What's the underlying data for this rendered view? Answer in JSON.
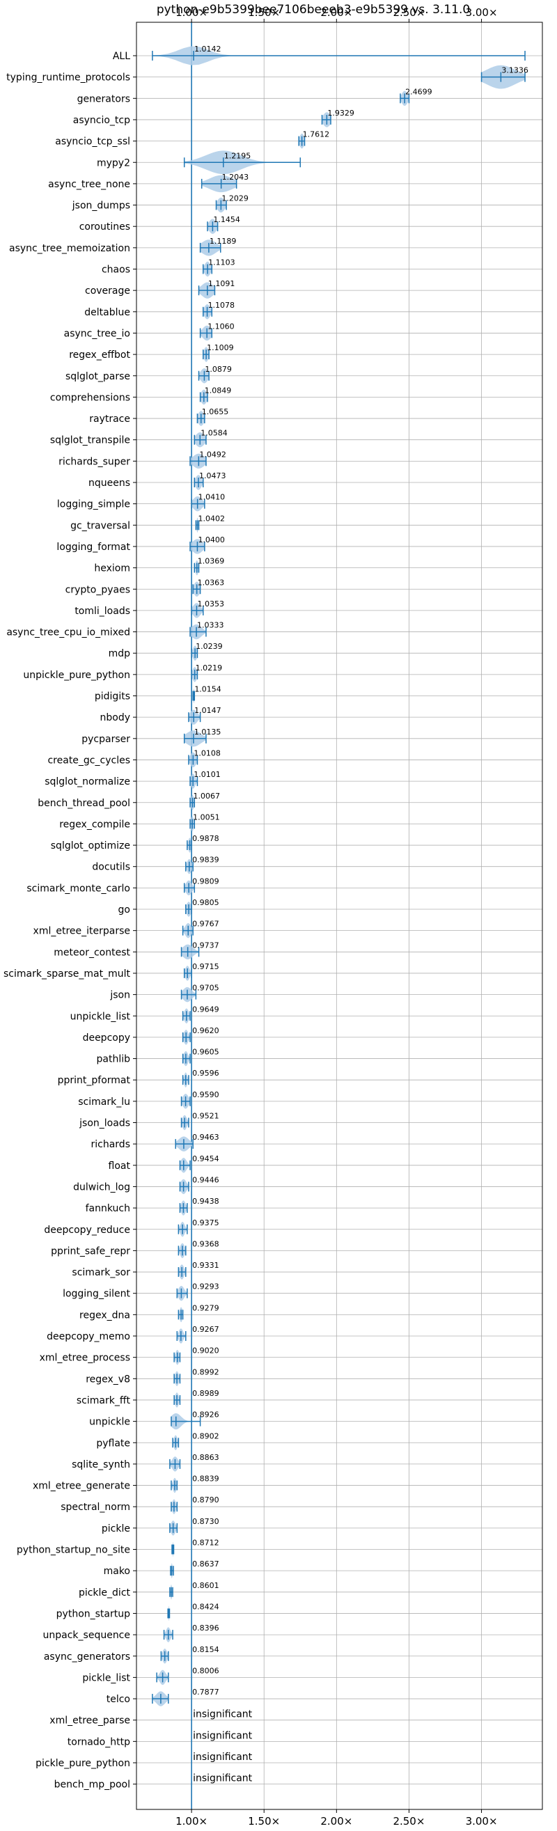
{
  "chart_data": {
    "type": "violin",
    "title": "python-e9b5399bee7106beeeb3-e9b5399 vs. 3.11.0",
    "xlabel": "",
    "ylabel": "",
    "xlim": [
      0.62,
      3.42
    ],
    "x_ticks": [
      1.0,
      1.5,
      2.0,
      2.5,
      3.0
    ],
    "x_tick_labels": [
      "1.00×",
      "1.50×",
      "2.00×",
      "2.50×",
      "3.00×"
    ],
    "grid": true,
    "reference_line": 1.0,
    "colors": {
      "violin": "#aecde8",
      "stroke": "#1f77b4",
      "grid": "#b0b0b0",
      "text": "#000000"
    },
    "categories": [
      {
        "name": "ALL",
        "median": 1.0142,
        "label": "1.0142",
        "min": 0.73,
        "max": 3.3,
        "spread": 0.1,
        "width": 0.45
      },
      {
        "name": "typing_runtime_protocols",
        "median": 3.1336,
        "label": "3.1336",
        "min": 3.0,
        "max": 3.3,
        "spread": 0.1,
        "width": 0.55
      },
      {
        "name": "generators",
        "median": 2.4699,
        "label": "2.4699",
        "min": 2.44,
        "max": 2.5,
        "spread": 0.02,
        "width": 0.35
      },
      {
        "name": "asyncio_tcp",
        "median": 1.9329,
        "label": "1.9329",
        "min": 1.9,
        "max": 1.96,
        "spread": 0.025,
        "width": 0.35
      },
      {
        "name": "asyncio_tcp_ssl",
        "median": 1.7612,
        "label": "1.7612",
        "min": 1.74,
        "max": 1.78,
        "spread": 0.015,
        "width": 0.35
      },
      {
        "name": "mypy2",
        "median": 1.2195,
        "label": "1.2195",
        "min": 0.95,
        "max": 1.75,
        "spread": 0.12,
        "width": 0.55
      },
      {
        "name": "async_tree_none",
        "median": 1.2043,
        "label": "1.2043",
        "min": 1.07,
        "max": 1.31,
        "spread": 0.08,
        "width": 0.4
      },
      {
        "name": "json_dumps",
        "median": 1.2029,
        "label": "1.2029",
        "min": 1.17,
        "max": 1.24,
        "spread": 0.025,
        "width": 0.35
      },
      {
        "name": "coroutines",
        "median": 1.1454,
        "label": "1.1454",
        "min": 1.11,
        "max": 1.18,
        "spread": 0.025,
        "width": 0.35
      },
      {
        "name": "async_tree_memoization",
        "median": 1.1189,
        "label": "1.1189",
        "min": 1.06,
        "max": 1.2,
        "spread": 0.05,
        "width": 0.38
      },
      {
        "name": "chaos",
        "median": 1.1103,
        "label": "1.1103",
        "min": 1.08,
        "max": 1.14,
        "spread": 0.02,
        "width": 0.35
      },
      {
        "name": "coverage",
        "median": 1.1091,
        "label": "1.1091",
        "min": 1.05,
        "max": 1.16,
        "spread": 0.04,
        "width": 0.38
      },
      {
        "name": "deltablue",
        "median": 1.1078,
        "label": "1.1078",
        "min": 1.08,
        "max": 1.14,
        "spread": 0.02,
        "width": 0.35
      },
      {
        "name": "async_tree_io",
        "median": 1.106,
        "label": "1.1060",
        "min": 1.06,
        "max": 1.14,
        "spread": 0.03,
        "width": 0.35
      },
      {
        "name": "regex_effbot",
        "median": 1.1009,
        "label": "1.1009",
        "min": 1.08,
        "max": 1.12,
        "spread": 0.015,
        "width": 0.35
      },
      {
        "name": "sqlglot_parse",
        "median": 1.0879,
        "label": "1.0879",
        "min": 1.05,
        "max": 1.12,
        "spread": 0.025,
        "width": 0.35
      },
      {
        "name": "comprehensions",
        "median": 1.0849,
        "label": "1.0849",
        "min": 1.06,
        "max": 1.11,
        "spread": 0.02,
        "width": 0.35
      },
      {
        "name": "raytrace",
        "median": 1.0655,
        "label": "1.0655",
        "min": 1.04,
        "max": 1.09,
        "spread": 0.02,
        "width": 0.35
      },
      {
        "name": "sqlglot_transpile",
        "median": 1.0584,
        "label": "1.0584",
        "min": 1.02,
        "max": 1.1,
        "spread": 0.03,
        "width": 0.35
      },
      {
        "name": "richards_super",
        "median": 1.0492,
        "label": "1.0492",
        "min": 0.99,
        "max": 1.1,
        "spread": 0.04,
        "width": 0.35
      },
      {
        "name": "nqueens",
        "median": 1.0473,
        "label": "1.0473",
        "min": 1.02,
        "max": 1.08,
        "spread": 0.02,
        "width": 0.35
      },
      {
        "name": "logging_simple",
        "median": 1.041,
        "label": "1.0410",
        "min": 1.0,
        "max": 1.09,
        "spread": 0.03,
        "width": 0.35
      },
      {
        "name": "gc_traversal",
        "median": 1.0402,
        "label": "1.0402",
        "min": 1.03,
        "max": 1.05,
        "spread": 0.005,
        "width": 0.35
      },
      {
        "name": "logging_format",
        "median": 1.04,
        "label": "1.0400",
        "min": 0.99,
        "max": 1.09,
        "spread": 0.035,
        "width": 0.35
      },
      {
        "name": "hexiom",
        "median": 1.0369,
        "label": "1.0369",
        "min": 1.02,
        "max": 1.05,
        "spread": 0.01,
        "width": 0.35
      },
      {
        "name": "crypto_pyaes",
        "median": 1.0363,
        "label": "1.0363",
        "min": 1.01,
        "max": 1.06,
        "spread": 0.02,
        "width": 0.35
      },
      {
        "name": "tomli_loads",
        "median": 1.0353,
        "label": "1.0353",
        "min": 1.0,
        "max": 1.08,
        "spread": 0.025,
        "width": 0.35
      },
      {
        "name": "async_tree_cpu_io_mixed",
        "median": 1.0333,
        "label": "1.0333",
        "min": 0.99,
        "max": 1.1,
        "spread": 0.035,
        "width": 0.35
      },
      {
        "name": "mdp",
        "median": 1.0239,
        "label": "1.0239",
        "min": 1.0,
        "max": 1.04,
        "spread": 0.015,
        "width": 0.35
      },
      {
        "name": "unpickle_pure_python",
        "median": 1.0219,
        "label": "1.0219",
        "min": 1.0,
        "max": 1.04,
        "spread": 0.015,
        "width": 0.35
      },
      {
        "name": "pidigits",
        "median": 1.0154,
        "label": "1.0154",
        "min": 1.01,
        "max": 1.02,
        "spread": 0.004,
        "width": 0.35
      },
      {
        "name": "nbody",
        "median": 1.0147,
        "label": "1.0147",
        "min": 0.98,
        "max": 1.06,
        "spread": 0.025,
        "width": 0.35
      },
      {
        "name": "pycparser",
        "median": 1.0135,
        "label": "1.0135",
        "min": 0.95,
        "max": 1.1,
        "spread": 0.05,
        "width": 0.38
      },
      {
        "name": "create_gc_cycles",
        "median": 1.0108,
        "label": "1.0108",
        "min": 0.98,
        "max": 1.04,
        "spread": 0.02,
        "width": 0.35
      },
      {
        "name": "sqlglot_normalize",
        "median": 1.0101,
        "label": "1.0101",
        "min": 0.99,
        "max": 1.04,
        "spread": 0.015,
        "width": 0.35
      },
      {
        "name": "bench_thread_pool",
        "median": 1.0067,
        "label": "1.0067",
        "min": 0.99,
        "max": 1.02,
        "spread": 0.01,
        "width": 0.35
      },
      {
        "name": "regex_compile",
        "median": 1.0051,
        "label": "1.0051",
        "min": 0.99,
        "max": 1.02,
        "spread": 0.01,
        "width": 0.35
      },
      {
        "name": "sqlglot_optimize",
        "median": 0.9878,
        "label": "0.9878",
        "min": 0.97,
        "max": 1.0,
        "spread": 0.01,
        "width": 0.35
      },
      {
        "name": "docutils",
        "median": 0.9839,
        "label": "0.9839",
        "min": 0.96,
        "max": 1.01,
        "spread": 0.015,
        "width": 0.35
      },
      {
        "name": "scimark_monte_carlo",
        "median": 0.9809,
        "label": "0.9809",
        "min": 0.95,
        "max": 1.02,
        "spread": 0.02,
        "width": 0.35
      },
      {
        "name": "go",
        "median": 0.9805,
        "label": "0.9805",
        "min": 0.96,
        "max": 1.0,
        "spread": 0.015,
        "width": 0.35
      },
      {
        "name": "xml_etree_iterparse",
        "median": 0.9767,
        "label": "0.9767",
        "min": 0.94,
        "max": 1.01,
        "spread": 0.02,
        "width": 0.35
      },
      {
        "name": "meteor_contest",
        "median": 0.9737,
        "label": "0.9737",
        "min": 0.93,
        "max": 1.05,
        "spread": 0.035,
        "width": 0.35
      },
      {
        "name": "scimark_sparse_mat_mult",
        "median": 0.9715,
        "label": "0.9715",
        "min": 0.95,
        "max": 1.0,
        "spread": 0.015,
        "width": 0.35
      },
      {
        "name": "json",
        "median": 0.9705,
        "label": "0.9705",
        "min": 0.93,
        "max": 1.03,
        "spread": 0.03,
        "width": 0.35
      },
      {
        "name": "unpickle_list",
        "median": 0.9649,
        "label": "0.9649",
        "min": 0.94,
        "max": 0.99,
        "spread": 0.015,
        "width": 0.35
      },
      {
        "name": "deepcopy",
        "median": 0.962,
        "label": "0.9620",
        "min": 0.94,
        "max": 0.99,
        "spread": 0.015,
        "width": 0.35
      },
      {
        "name": "pathlib",
        "median": 0.9605,
        "label": "0.9605",
        "min": 0.94,
        "max": 0.99,
        "spread": 0.015,
        "width": 0.35
      },
      {
        "name": "pprint_pformat",
        "median": 0.9596,
        "label": "0.9596",
        "min": 0.94,
        "max": 0.98,
        "spread": 0.01,
        "width": 0.35
      },
      {
        "name": "scimark_lu",
        "median": 0.959,
        "label": "0.9590",
        "min": 0.93,
        "max": 0.99,
        "spread": 0.02,
        "width": 0.35
      },
      {
        "name": "json_loads",
        "median": 0.9521,
        "label": "0.9521",
        "min": 0.93,
        "max": 0.98,
        "spread": 0.015,
        "width": 0.35
      },
      {
        "name": "richards",
        "median": 0.9463,
        "label": "0.9463",
        "min": 0.89,
        "max": 1.01,
        "spread": 0.035,
        "width": 0.35
      },
      {
        "name": "float",
        "median": 0.9454,
        "label": "0.9454",
        "min": 0.92,
        "max": 0.99,
        "spread": 0.02,
        "width": 0.35
      },
      {
        "name": "dulwich_log",
        "median": 0.9446,
        "label": "0.9446",
        "min": 0.92,
        "max": 0.98,
        "spread": 0.02,
        "width": 0.35
      },
      {
        "name": "fannkuch",
        "median": 0.9438,
        "label": "0.9438",
        "min": 0.92,
        "max": 0.97,
        "spread": 0.015,
        "width": 0.35
      },
      {
        "name": "deepcopy_reduce",
        "median": 0.9375,
        "label": "0.9375",
        "min": 0.91,
        "max": 0.97,
        "spread": 0.015,
        "width": 0.35
      },
      {
        "name": "pprint_safe_repr",
        "median": 0.9368,
        "label": "0.9368",
        "min": 0.91,
        "max": 0.96,
        "spread": 0.015,
        "width": 0.35
      },
      {
        "name": "scimark_sor",
        "median": 0.9331,
        "label": "0.9331",
        "min": 0.91,
        "max": 0.96,
        "spread": 0.015,
        "width": 0.35
      },
      {
        "name": "logging_silent",
        "median": 0.9293,
        "label": "0.9293",
        "min": 0.9,
        "max": 0.97,
        "spread": 0.02,
        "width": 0.35
      },
      {
        "name": "regex_dna",
        "median": 0.9279,
        "label": "0.9279",
        "min": 0.91,
        "max": 0.94,
        "spread": 0.01,
        "width": 0.35
      },
      {
        "name": "deepcopy_memo",
        "median": 0.9267,
        "label": "0.9267",
        "min": 0.9,
        "max": 0.96,
        "spread": 0.015,
        "width": 0.35
      },
      {
        "name": "xml_etree_process",
        "median": 0.902,
        "label": "0.9020",
        "min": 0.88,
        "max": 0.92,
        "spread": 0.012,
        "width": 0.35
      },
      {
        "name": "regex_v8",
        "median": 0.8992,
        "label": "0.8992",
        "min": 0.88,
        "max": 0.92,
        "spread": 0.012,
        "width": 0.35
      },
      {
        "name": "scimark_fft",
        "median": 0.8989,
        "label": "0.8989",
        "min": 0.88,
        "max": 0.92,
        "spread": 0.012,
        "width": 0.35
      },
      {
        "name": "unpickle",
        "median": 0.8926,
        "label": "0.8926",
        "min": 0.86,
        "max": 1.06,
        "spread": 0.035,
        "width": 0.38
      },
      {
        "name": "pyflate",
        "median": 0.8902,
        "label": "0.8902",
        "min": 0.87,
        "max": 0.91,
        "spread": 0.012,
        "width": 0.35
      },
      {
        "name": "sqlite_synth",
        "median": 0.8863,
        "label": "0.8863",
        "min": 0.85,
        "max": 0.92,
        "spread": 0.02,
        "width": 0.35
      },
      {
        "name": "xml_etree_generate",
        "median": 0.8839,
        "label": "0.8839",
        "min": 0.86,
        "max": 0.9,
        "spread": 0.012,
        "width": 0.35
      },
      {
        "name": "spectral_norm",
        "median": 0.879,
        "label": "0.8790",
        "min": 0.86,
        "max": 0.9,
        "spread": 0.012,
        "width": 0.35
      },
      {
        "name": "pickle",
        "median": 0.873,
        "label": "0.8730",
        "min": 0.85,
        "max": 0.9,
        "spread": 0.015,
        "width": 0.35
      },
      {
        "name": "python_startup_no_site",
        "median": 0.8712,
        "label": "0.8712",
        "min": 0.865,
        "max": 0.877,
        "spread": 0.003,
        "width": 0.35
      },
      {
        "name": "mako",
        "median": 0.8637,
        "label": "0.8637",
        "min": 0.855,
        "max": 0.875,
        "spread": 0.005,
        "width": 0.35
      },
      {
        "name": "pickle_dict",
        "median": 0.8601,
        "label": "0.8601",
        "min": 0.85,
        "max": 0.87,
        "spread": 0.005,
        "width": 0.35
      },
      {
        "name": "python_startup",
        "median": 0.8424,
        "label": "0.8424",
        "min": 0.837,
        "max": 0.848,
        "spread": 0.003,
        "width": 0.35
      },
      {
        "name": "unpack_sequence",
        "median": 0.8396,
        "label": "0.8396",
        "min": 0.81,
        "max": 0.87,
        "spread": 0.015,
        "width": 0.35
      },
      {
        "name": "async_generators",
        "median": 0.8154,
        "label": "0.8154",
        "min": 0.79,
        "max": 0.84,
        "spread": 0.015,
        "width": 0.35
      },
      {
        "name": "pickle_list",
        "median": 0.8006,
        "label": "0.8006",
        "min": 0.76,
        "max": 0.84,
        "spread": 0.02,
        "width": 0.35
      },
      {
        "name": "telco",
        "median": 0.7877,
        "label": "0.7877",
        "min": 0.73,
        "max": 0.84,
        "spread": 0.03,
        "width": 0.35
      },
      {
        "name": "xml_etree_parse",
        "median": null,
        "label": "insignificant"
      },
      {
        "name": "tornado_http",
        "median": null,
        "label": "insignificant"
      },
      {
        "name": "pickle_pure_python",
        "median": null,
        "label": "insignificant"
      },
      {
        "name": "bench_mp_pool",
        "median": null,
        "label": "insignificant"
      }
    ]
  }
}
